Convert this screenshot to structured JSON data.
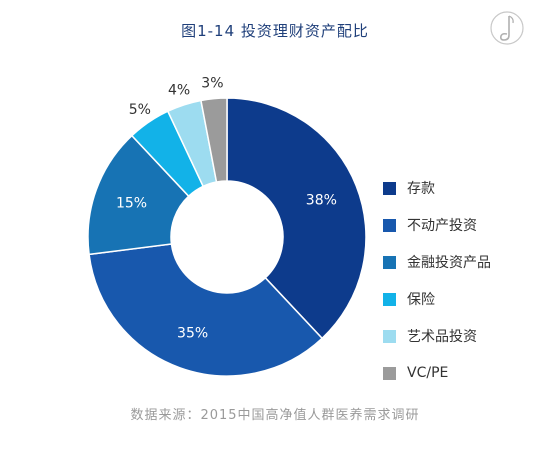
{
  "header": {
    "title": "图1-14 投资理财资产配比"
  },
  "footer": {
    "source": "数据来源：2015中国高净值人群医养需求调研"
  },
  "chart_data": {
    "type": "pie",
    "style": "donut",
    "title": "图1-14 投资理财资产配比",
    "unit": "%",
    "legend_position": "right",
    "slices": [
      {
        "label": "存款",
        "value": 38,
        "value_label": "38%",
        "color": "#0d3b8c"
      },
      {
        "label": "不动产投资",
        "value": 35,
        "value_label": "35%",
        "color": "#1858ad"
      },
      {
        "label": "金融投资产品",
        "value": 15,
        "value_label": "15%",
        "color": "#1773b4"
      },
      {
        "label": "保险",
        "value": 5,
        "value_label": "5%",
        "color": "#12b2e8"
      },
      {
        "label": "艺术品投资",
        "value": 4,
        "value_label": "4%",
        "color": "#9ddcf0"
      },
      {
        "label": "VC/PE",
        "value": 3,
        "value_label": "3%",
        "color": "#9b9b9b"
      }
    ]
  }
}
